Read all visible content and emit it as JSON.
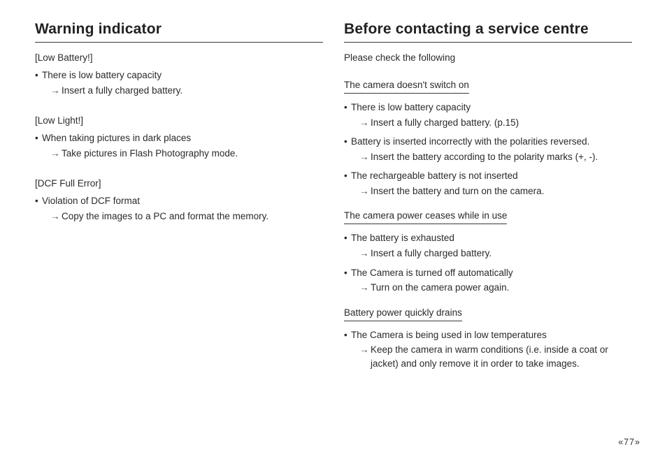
{
  "left": {
    "heading": "Warning indicator",
    "groups": [
      {
        "label": "[Low Battery!]",
        "items": [
          {
            "bullet": "There is low battery capacity",
            "arrow": "Insert a fully charged battery."
          }
        ]
      },
      {
        "label": "[Low Light!]",
        "items": [
          {
            "bullet": "When taking pictures in dark places",
            "arrow": "Take pictures in Flash Photography mode."
          }
        ]
      },
      {
        "label": "[DCF Full Error]",
        "items": [
          {
            "bullet": "Violation of DCF format",
            "arrow": "Copy the images to a PC and format the memory."
          }
        ]
      }
    ]
  },
  "right": {
    "heading": "Before contacting a service centre",
    "intro": "Please check the following",
    "sections": [
      {
        "subhead": "The camera doesn't switch on",
        "items": [
          {
            "bullet": "There is low battery capacity",
            "arrow": "Insert a fully charged battery. (p.15)"
          },
          {
            "bullet": "Battery is inserted incorrectly with the polarities reversed.",
            "arrow": "Insert the battery according to the polarity marks (+, -)."
          },
          {
            "bullet": "The rechargeable battery is not inserted",
            "arrow": "Insert the battery and turn on the camera."
          }
        ]
      },
      {
        "subhead": "The camera power ceases while in use",
        "items": [
          {
            "bullet": "The battery is exhausted",
            "arrow": "Insert a fully charged battery."
          },
          {
            "bullet": "The Camera is turned off automatically",
            "arrow": "Turn on the camera power again."
          }
        ]
      },
      {
        "subhead": "Battery power quickly drains",
        "items": [
          {
            "bullet": "The Camera is being used in low temperatures",
            "arrow": "Keep the camera in warm conditions (i.e. inside a coat or jacket) and only remove it in order to take images."
          }
        ]
      }
    ]
  },
  "pagenum": "77",
  "glyphs": {
    "bullet": "•",
    "arrow": "→"
  },
  "colors": {
    "text": "#2a2a2a",
    "rule": "#3a3a3a",
    "background": "#ffffff"
  },
  "fonts": {
    "heading_size_pt": 16,
    "body_size_pt": 10,
    "heading_weight": "bold"
  }
}
